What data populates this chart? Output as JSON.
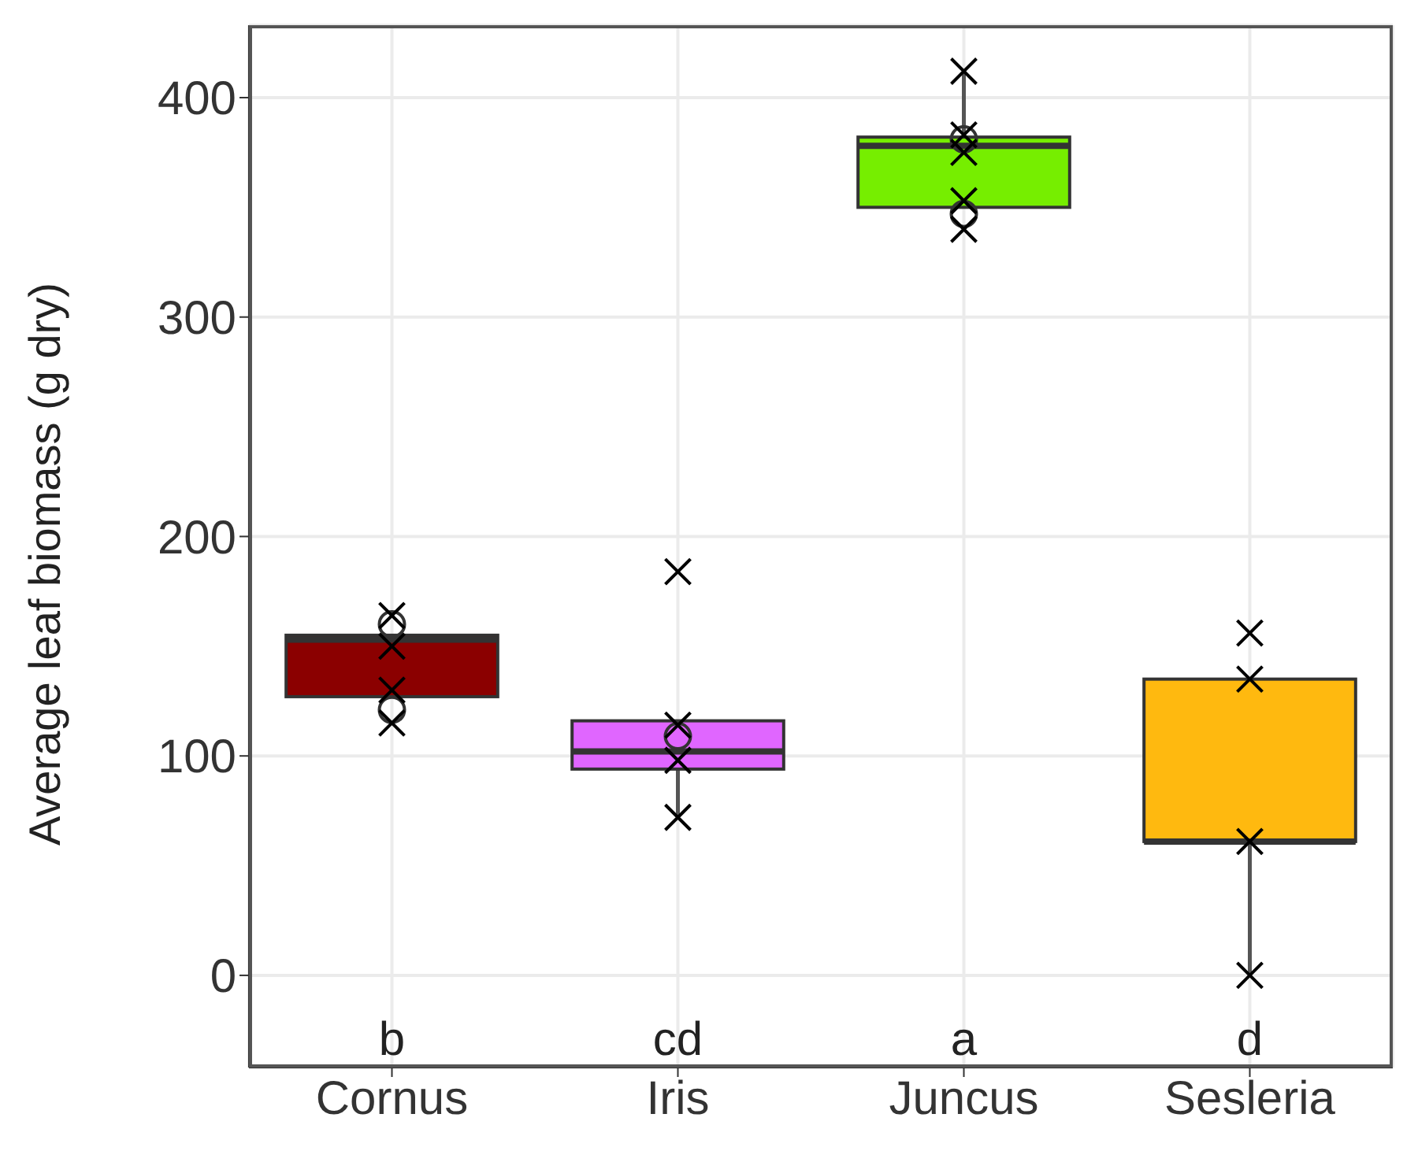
{
  "chart_data": {
    "type": "box",
    "ylabel": "Average leaf biomass (g dry)",
    "categories": [
      "Cornus",
      "Iris",
      "Juncus",
      "Sesleria"
    ],
    "colors": [
      "#8b0000",
      "#e066ff",
      "#76ee00",
      "#ffb90f"
    ],
    "boxes": [
      {
        "low": 127,
        "q1": 127,
        "median": 153,
        "q3": 155,
        "high": 155,
        "outliers": [
          160,
          121
        ]
      },
      {
        "low": 72,
        "q1": 94,
        "median": 102,
        "q3": 116,
        "high": 116,
        "outliers": [
          109
        ]
      },
      {
        "low": 350,
        "q1": 350,
        "median": 378,
        "q3": 382,
        "high": 412,
        "outliers": [
          347,
          381
        ]
      },
      {
        "low": 0,
        "q1": 61,
        "median": 61,
        "q3": 135,
        "high": 135
      }
    ],
    "series": [
      {
        "type": "scatter",
        "marker": "cross",
        "color": "#000000",
        "x": [
          "Cornus",
          "Cornus",
          "Cornus",
          "Cornus",
          "Iris",
          "Iris",
          "Iris",
          "Iris",
          "Juncus",
          "Juncus",
          "Juncus",
          "Juncus",
          "Juncus",
          "Sesleria",
          "Sesleria",
          "Sesleria",
          "Sesleria"
        ],
        "values": [
          164,
          150,
          130,
          115,
          184,
          114,
          98,
          72,
          412,
          383,
          375,
          353,
          340,
          156,
          135,
          61,
          0
        ]
      }
    ],
    "ylim": [
      -42,
      433
    ],
    "yticks": [
      0,
      100,
      200,
      300,
      400
    ],
    "grid": true,
    "annotations": [
      "b",
      "cd",
      "a",
      "d"
    ]
  }
}
